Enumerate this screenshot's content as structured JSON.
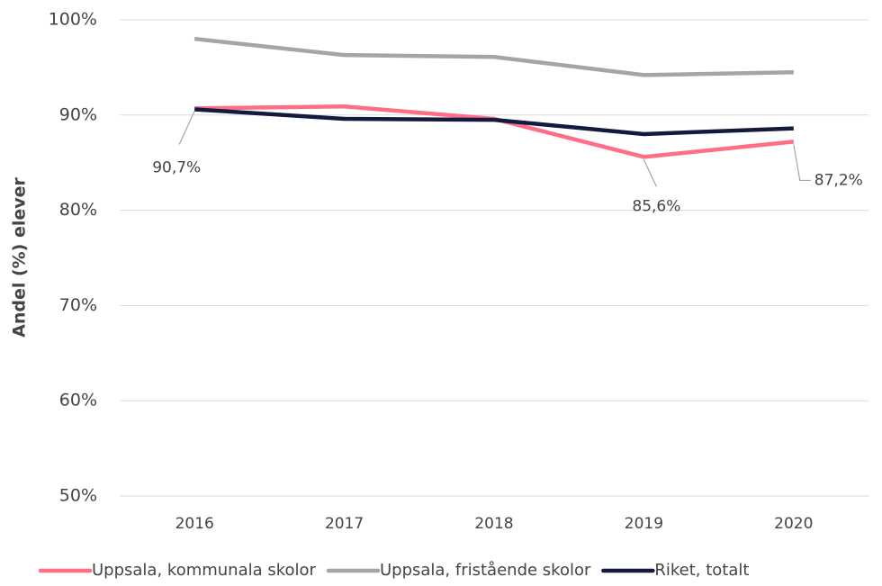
{
  "chart_data": {
    "type": "line",
    "y_label": "Andel (%) elever",
    "categories": [
      "2016",
      "2017",
      "2018",
      "2019",
      "2020"
    ],
    "series": [
      {
        "name": "Uppsala, kommunala skolor",
        "color": "#ff6e87",
        "values": [
          90.7,
          90.9,
          89.6,
          85.6,
          87.2
        ],
        "value_labels": [
          "90,7%",
          null,
          null,
          "85,6%",
          "87,2%"
        ]
      },
      {
        "name": "Uppsala, fristående skolor",
        "color": "#a5a5a5",
        "values": [
          98.0,
          96.3,
          96.1,
          94.2,
          94.5
        ]
      },
      {
        "name": "Riket, totalt",
        "color": "#131a3d",
        "values": [
          90.6,
          89.6,
          89.5,
          88.0,
          88.6
        ]
      }
    ],
    "ylim": [
      50,
      100
    ],
    "yticks": [
      {
        "value": 50,
        "label": "50%"
      },
      {
        "value": 60,
        "label": "60%"
      },
      {
        "value": 70,
        "label": "70%"
      },
      {
        "value": 80,
        "label": "80%"
      },
      {
        "value": 90,
        "label": "90%"
      },
      {
        "value": 100,
        "label": "100%"
      }
    ],
    "grid": true,
    "legend": "bottom"
  }
}
